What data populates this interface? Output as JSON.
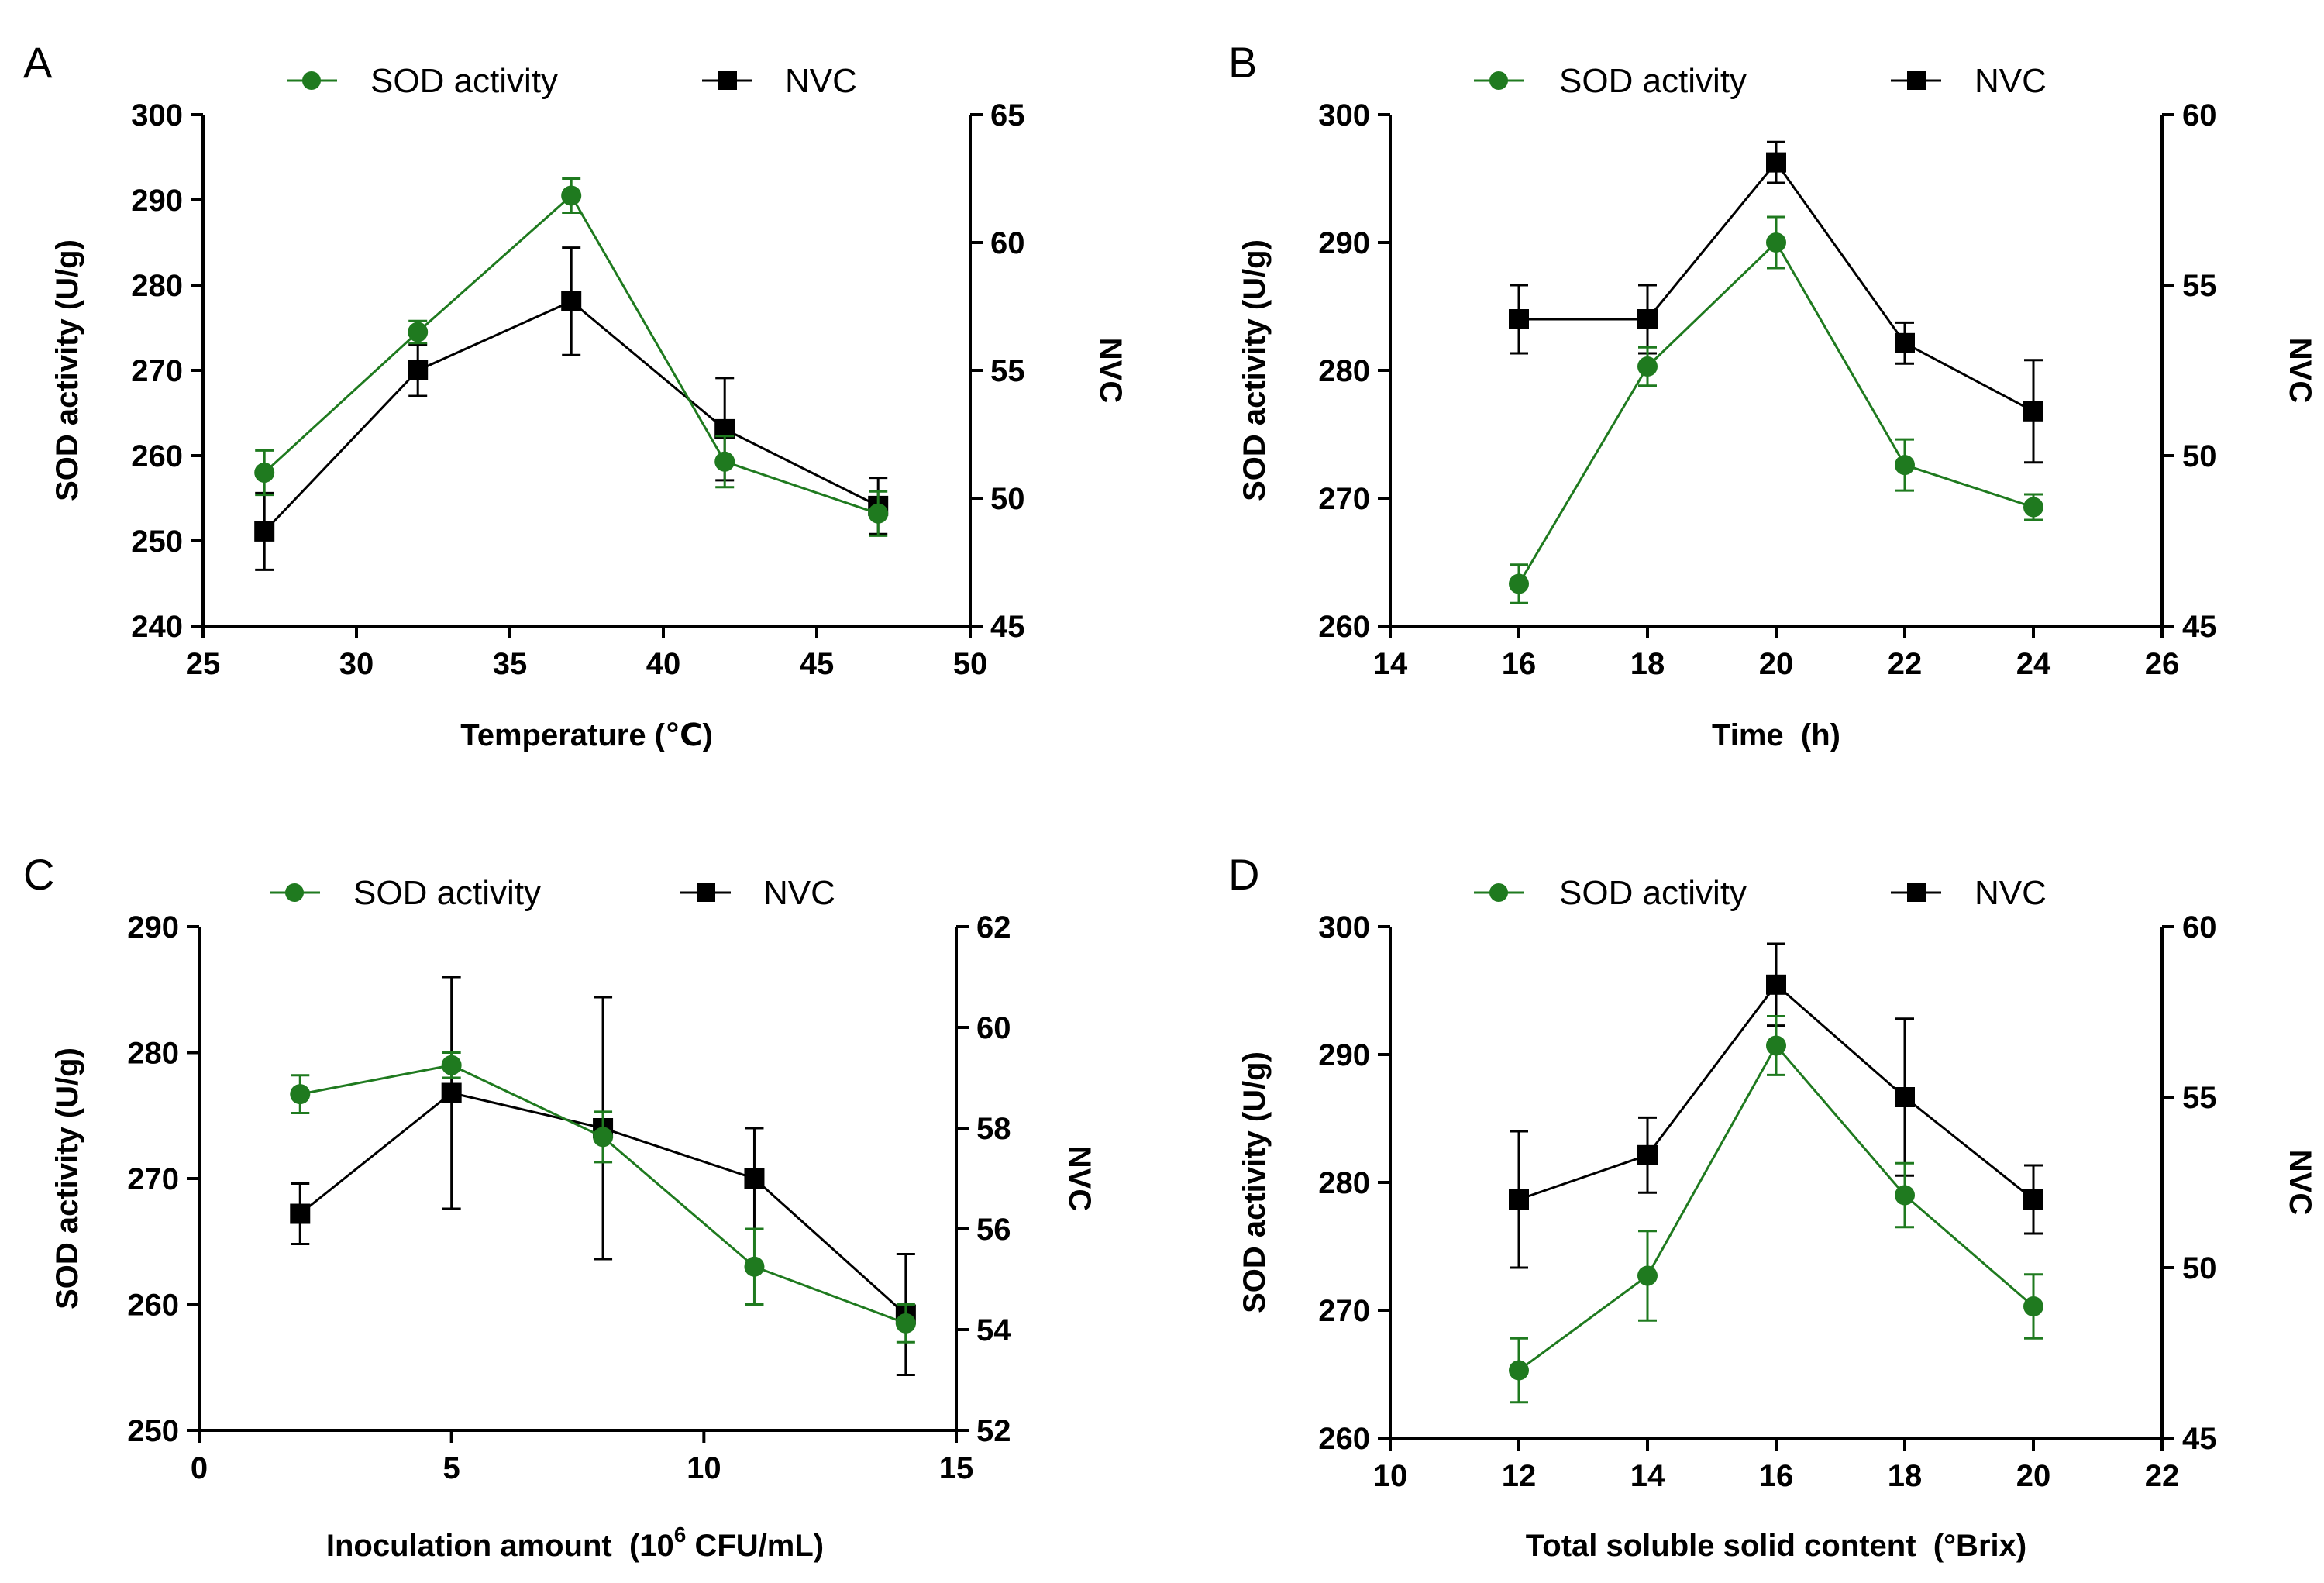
{
  "colors": {
    "sod": "#1f7a1f",
    "nvc": "#000000"
  },
  "chart_data": [
    {
      "type": "line",
      "panel": "A",
      "xlabel": "Temperature (℃)",
      "ylabel": "SOD activity (U/g)",
      "y2label": "NVC",
      "xlim": [
        25,
        50
      ],
      "xticks": [
        25,
        30,
        35,
        40,
        45,
        50
      ],
      "ylim": [
        240,
        300
      ],
      "yticks": [
        240,
        250,
        260,
        270,
        280,
        290,
        300
      ],
      "y2lim": [
        45,
        65
      ],
      "y2ticks": [
        45,
        50,
        55,
        60,
        65
      ],
      "legend": [
        "SOD activity",
        "NVC"
      ],
      "series": [
        {
          "name": "SOD activity",
          "axis": "left",
          "x": [
            27,
            32,
            37,
            42,
            47
          ],
          "values": [
            258,
            274.5,
            290.5,
            259.3,
            253.2
          ],
          "err": [
            2.6,
            1.3,
            2,
            3,
            2.6
          ]
        },
        {
          "name": "NVC",
          "axis": "right",
          "x": [
            27,
            32,
            37,
            42,
            47
          ],
          "values": [
            48.7,
            55,
            57.7,
            52.7,
            49.7
          ],
          "err": [
            1.5,
            1,
            2.1,
            2,
            1.1
          ]
        }
      ]
    },
    {
      "type": "line",
      "panel": "B",
      "xlabel": "Time  (h)",
      "ylabel": "SOD activity (U/g)",
      "y2label": "NVC",
      "xlim": [
        14,
        26
      ],
      "xticks": [
        14,
        16,
        18,
        20,
        22,
        24,
        26
      ],
      "ylim": [
        260,
        300
      ],
      "yticks": [
        260,
        270,
        280,
        290,
        300
      ],
      "y2lim": [
        45,
        60
      ],
      "y2ticks": [
        45,
        50,
        55,
        60
      ],
      "legend": [
        "SOD activity",
        "NVC"
      ],
      "series": [
        {
          "name": "SOD activity",
          "axis": "left",
          "x": [
            16,
            18,
            20,
            22,
            24
          ],
          "values": [
            263.3,
            280.3,
            290,
            272.6,
            269.3
          ],
          "err": [
            1.5,
            1.5,
            2,
            2,
            1
          ]
        },
        {
          "name": "NVC",
          "axis": "right",
          "x": [
            16,
            18,
            20,
            22,
            24
          ],
          "values": [
            54,
            54,
            58.6,
            53.3,
            51.3
          ],
          "err": [
            1,
            1,
            0.6,
            0.6,
            1.5
          ]
        }
      ]
    },
    {
      "type": "line",
      "panel": "C",
      "xlabel": "Inoculation amount  (10",
      "xlabel_sup": "6",
      "xlabel_tail": " CFU/mL)",
      "ylabel": "SOD activity (U/g)",
      "y2label": "NVC",
      "xlim": [
        0,
        15
      ],
      "xticks": [
        0,
        5,
        10,
        15
      ],
      "ylim": [
        250,
        290
      ],
      "yticks": [
        250,
        260,
        270,
        280,
        290
      ],
      "y2lim": [
        52,
        62
      ],
      "y2ticks": [
        52,
        54,
        56,
        58,
        60,
        62
      ],
      "legend": [
        "SOD activity",
        "NVC"
      ],
      "series": [
        {
          "name": "SOD activity",
          "axis": "left",
          "x": [
            2,
            5,
            8,
            11,
            14
          ],
          "values": [
            276.7,
            279,
            273.3,
            263,
            258.5
          ],
          "err": [
            1.5,
            1,
            2,
            3,
            1.5
          ]
        },
        {
          "name": "NVC",
          "axis": "right",
          "x": [
            2,
            5,
            8,
            11,
            14
          ],
          "values": [
            56.3,
            58.7,
            58,
            57,
            54.3
          ],
          "err": [
            0.6,
            2.3,
            2.6,
            1,
            1.2
          ]
        }
      ]
    },
    {
      "type": "line",
      "panel": "D",
      "xlabel": "Total soluble solid content  (°Brix)",
      "ylabel": "SOD activity (U/g)",
      "y2label": "NVC",
      "xlim": [
        10,
        22
      ],
      "xticks": [
        10,
        12,
        14,
        16,
        18,
        20,
        22
      ],
      "ylim": [
        260,
        300
      ],
      "yticks": [
        260,
        270,
        280,
        290,
        300
      ],
      "y2lim": [
        45,
        60
      ],
      "y2ticks": [
        45,
        50,
        55,
        60
      ],
      "legend": [
        "SOD activity",
        "NVC"
      ],
      "series": [
        {
          "name": "SOD activity",
          "axis": "left",
          "x": [
            12,
            14,
            16,
            18,
            20
          ],
          "values": [
            265.3,
            272.7,
            290.7,
            279,
            270.3
          ],
          "err": [
            2.5,
            3.5,
            2.3,
            2.5,
            2.5
          ]
        },
        {
          "name": "NVC",
          "axis": "right",
          "x": [
            12,
            14,
            16,
            18,
            20
          ],
          "values": [
            52,
            53.3,
            58.3,
            55,
            52
          ],
          "err": [
            2,
            1.1,
            1.2,
            2.3,
            1
          ]
        }
      ]
    }
  ]
}
